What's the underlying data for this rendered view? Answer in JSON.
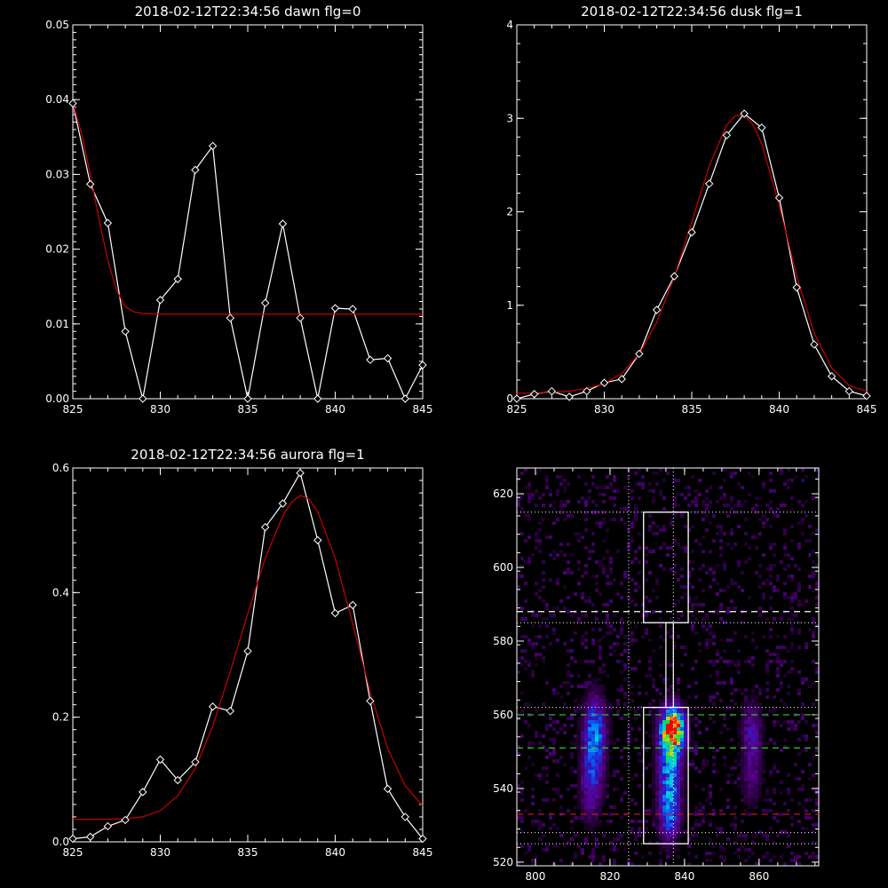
{
  "colors": {
    "background": "#000000",
    "axes": "#ffffff",
    "data_line": "#ffffff",
    "fit_line": "#cc0000",
    "green_line": "#33cc33",
    "red_dash": "#dd1133",
    "box": "#ffffff"
  },
  "chart_data": [
    {
      "id": "dawn",
      "type": "line",
      "title": "2018-02-12T22:34:56 dawn flg=0",
      "xlim": [
        825,
        845
      ],
      "ylim": [
        0.0,
        0.05
      ],
      "xticks": [
        825,
        830,
        835,
        840,
        845
      ],
      "xtick_labels": [
        "825",
        "830",
        "835",
        "840",
        "845"
      ],
      "yticks": [
        0.0,
        0.01,
        0.02,
        0.03,
        0.04,
        0.05
      ],
      "ytick_labels": [
        "0.00",
        "0.01",
        "0.02",
        "0.03",
        "0.04",
        "0.05"
      ],
      "series": [
        {
          "role": "data",
          "marker": "diamond",
          "x": [
            825,
            826,
            827,
            828,
            829,
            830,
            831,
            832,
            833,
            834,
            835,
            836,
            837,
            838,
            839,
            840,
            841,
            842,
            843,
            844,
            845
          ],
          "y": [
            0.0395,
            0.0287,
            0.0235,
            0.009,
            0.0,
            0.0132,
            0.016,
            0.0306,
            0.0338,
            0.0108,
            0.0,
            0.0128,
            0.0234,
            0.0108,
            0.0,
            0.0121,
            0.012,
            0.0052,
            0.0054,
            0.0,
            0.0045
          ]
        },
        {
          "role": "fit",
          "x": [
            825,
            825.5,
            826,
            826.5,
            827,
            827.5,
            828,
            828.5,
            829,
            830,
            832,
            835,
            840,
            845
          ],
          "y": [
            0.0395,
            0.0355,
            0.03,
            0.024,
            0.0185,
            0.0145,
            0.0123,
            0.0116,
            0.0114,
            0.0113,
            0.0113,
            0.0113,
            0.0113,
            0.0113
          ]
        }
      ]
    },
    {
      "id": "dusk",
      "type": "line",
      "title": "2018-02-12T22:34:56 dusk flg=1",
      "xlim": [
        825,
        845
      ],
      "ylim": [
        0,
        4
      ],
      "xticks": [
        825,
        830,
        835,
        840,
        845
      ],
      "xtick_labels": [
        "825",
        "830",
        "835",
        "840",
        "845"
      ],
      "yticks": [
        0,
        1,
        2,
        3,
        4
      ],
      "ytick_labels": [
        "0",
        "1",
        "2",
        "3",
        "4"
      ],
      "series": [
        {
          "role": "data",
          "marker": "diamond",
          "x": [
            825,
            826,
            827,
            828,
            829,
            830,
            831,
            832,
            833,
            834,
            835,
            836,
            837,
            838,
            839,
            840,
            841,
            842,
            843,
            844,
            845
          ],
          "y": [
            0.0,
            0.05,
            0.08,
            0.02,
            0.08,
            0.17,
            0.21,
            0.48,
            0.95,
            1.31,
            1.78,
            2.3,
            2.82,
            3.05,
            2.9,
            2.15,
            1.19,
            0.58,
            0.24,
            0.08,
            0.03
          ]
        },
        {
          "role": "fit",
          "x": [
            825,
            826,
            827,
            828,
            829,
            830,
            831,
            832,
            833,
            834,
            835,
            836,
            837,
            837.5,
            838,
            838.5,
            839,
            840,
            841,
            842,
            843,
            844,
            845
          ],
          "y": [
            0.06,
            0.06,
            0.07,
            0.08,
            0.11,
            0.16,
            0.27,
            0.48,
            0.82,
            1.3,
            1.89,
            2.49,
            2.93,
            3.03,
            3.03,
            2.93,
            2.73,
            2.07,
            1.31,
            0.7,
            0.33,
            0.14,
            0.08
          ]
        }
      ]
    },
    {
      "id": "aurora",
      "type": "line",
      "title": "2018-02-12T22:34:56 aurora flg=1",
      "xlim": [
        825,
        845
      ],
      "ylim": [
        0.0,
        0.6
      ],
      "xticks": [
        825,
        830,
        835,
        840,
        845
      ],
      "xtick_labels": [
        "825",
        "830",
        "835",
        "840",
        "845"
      ],
      "yticks": [
        0.0,
        0.2,
        0.4,
        0.6
      ],
      "ytick_labels": [
        "0.0",
        "0.2",
        "0.4",
        "0.6"
      ],
      "series": [
        {
          "role": "data",
          "marker": "diamond",
          "x": [
            825,
            826,
            827,
            828,
            829,
            830,
            831,
            832,
            833,
            834,
            835,
            836,
            837,
            838,
            839,
            840,
            841,
            842,
            843,
            844,
            845
          ],
          "y": [
            0.005,
            0.008,
            0.025,
            0.035,
            0.08,
            0.132,
            0.099,
            0.128,
            0.217,
            0.21,
            0.306,
            0.505,
            0.543,
            0.592,
            0.484,
            0.367,
            0.38,
            0.226,
            0.085,
            0.04,
            0.005
          ]
        },
        {
          "role": "fit",
          "x": [
            825,
            826,
            827,
            828,
            829,
            830,
            831,
            832,
            833,
            834,
            835,
            836,
            837,
            837.5,
            838,
            838.5,
            839,
            840,
            841,
            842,
            843,
            844,
            845
          ],
          "y": [
            0.036,
            0.036,
            0.036,
            0.037,
            0.04,
            0.05,
            0.074,
            0.118,
            0.186,
            0.273,
            0.366,
            0.455,
            0.523,
            0.545,
            0.556,
            0.55,
            0.53,
            0.455,
            0.35,
            0.24,
            0.15,
            0.09,
            0.058
          ]
        }
      ]
    },
    {
      "id": "image",
      "type": "heatmap",
      "title": "",
      "xlim": [
        795,
        876
      ],
      "ylim": [
        519,
        627
      ],
      "xticks": [
        800,
        820,
        840,
        860
      ],
      "xtick_labels": [
        "800",
        "820",
        "840",
        "860"
      ],
      "yticks": [
        520,
        540,
        560,
        580,
        600,
        620
      ],
      "ytick_labels": [
        "520",
        "540",
        "560",
        "580",
        "600",
        "620"
      ],
      "blobs": [
        {
          "x": 816,
          "y": 555,
          "sx": 2.2,
          "sy": 7,
          "amp": 0.5
        },
        {
          "x": 815,
          "y": 541,
          "sx": 2.0,
          "sy": 7,
          "amp": 0.32
        },
        {
          "x": 837,
          "y": 556,
          "sx": 2.2,
          "sy": 4,
          "amp": 1.0
        },
        {
          "x": 836,
          "y": 545,
          "sx": 2.2,
          "sy": 9,
          "amp": 0.55
        },
        {
          "x": 836,
          "y": 532,
          "sx": 2.0,
          "sy": 5,
          "amp": 0.28
        },
        {
          "x": 858,
          "y": 555,
          "sx": 2.0,
          "sy": 6,
          "amp": 0.28
        },
        {
          "x": 858,
          "y": 542,
          "sx": 2.0,
          "sy": 5,
          "amp": 0.18
        }
      ],
      "dotted_vertical_lines_x": [
        825,
        837
      ],
      "dotted_horizontal_lines_y": [
        525,
        528,
        562,
        585,
        615
      ],
      "dashed_white_y": [
        588
      ],
      "dashed_green_y": [
        551,
        560
      ],
      "dashed_red_y": [
        533
      ],
      "boxes": [
        {
          "x0": 829,
          "x1": 841,
          "y0": 525,
          "y1": 562
        },
        {
          "x0": 829,
          "x1": 841,
          "y0": 585,
          "y1": 615
        }
      ],
      "connector": {
        "x0": 835,
        "x1": 837,
        "y0": 562,
        "y1": 585
      }
    }
  ]
}
